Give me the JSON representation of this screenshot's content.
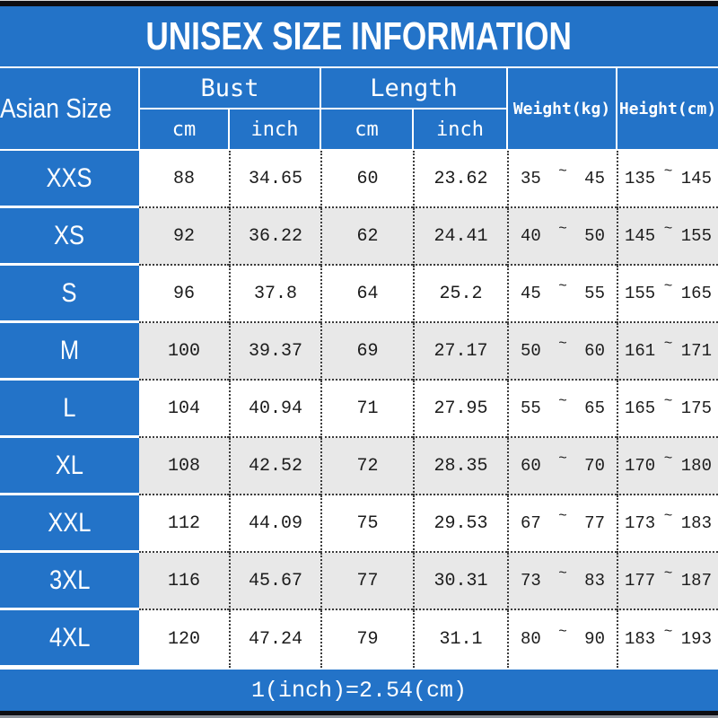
{
  "title": "UNISEX SIZE INFORMATION",
  "header": {
    "size_column": "Asian Size",
    "bust": {
      "label": "Bust",
      "sub_cm": "cm",
      "sub_inch": "inch"
    },
    "length": {
      "label": "Length",
      "sub_cm": "cm",
      "sub_inch": "inch"
    },
    "weight": "Weight(kg)",
    "height": "Height(cm)"
  },
  "range_separator": "~",
  "rows": [
    {
      "size": "XXS",
      "bust_cm": "88",
      "bust_inch": "34.65",
      "length_cm": "60",
      "length_inch": "23.62",
      "weight_min": "35",
      "weight_max": "45",
      "height_min": "135",
      "height_max": "145"
    },
    {
      "size": "XS",
      "bust_cm": "92",
      "bust_inch": "36.22",
      "length_cm": "62",
      "length_inch": "24.41",
      "weight_min": "40",
      "weight_max": "50",
      "height_min": "145",
      "height_max": "155"
    },
    {
      "size": "S",
      "bust_cm": "96",
      "bust_inch": "37.8",
      "length_cm": "64",
      "length_inch": "25.2",
      "weight_min": "45",
      "weight_max": "55",
      "height_min": "155",
      "height_max": "165"
    },
    {
      "size": "M",
      "bust_cm": "100",
      "bust_inch": "39.37",
      "length_cm": "69",
      "length_inch": "27.17",
      "weight_min": "50",
      "weight_max": "60",
      "height_min": "161",
      "height_max": "171"
    },
    {
      "size": "L",
      "bust_cm": "104",
      "bust_inch": "40.94",
      "length_cm": "71",
      "length_inch": "27.95",
      "weight_min": "55",
      "weight_max": "65",
      "height_min": "165",
      "height_max": "175"
    },
    {
      "size": "XL",
      "bust_cm": "108",
      "bust_inch": "42.52",
      "length_cm": "72",
      "length_inch": "28.35",
      "weight_min": "60",
      "weight_max": "70",
      "height_min": "170",
      "height_max": "180"
    },
    {
      "size": "XXL",
      "bust_cm": "112",
      "bust_inch": "44.09",
      "length_cm": "75",
      "length_inch": "29.53",
      "weight_min": "67",
      "weight_max": "77",
      "height_min": "173",
      "height_max": "183"
    },
    {
      "size": "3XL",
      "bust_cm": "116",
      "bust_inch": "45.67",
      "length_cm": "77",
      "length_inch": "30.31",
      "weight_min": "73",
      "weight_max": "83",
      "height_min": "177",
      "height_max": "187"
    },
    {
      "size": "4XL",
      "bust_cm": "120",
      "bust_inch": "47.24",
      "length_cm": "79",
      "length_inch": "31.1",
      "weight_min": "80",
      "weight_max": "90",
      "height_min": "183",
      "height_max": "193"
    }
  ],
  "footer_note": "1(inch)=2.54(cm)",
  "colors": {
    "blue": "#2373c8",
    "bar": "#0d0d12",
    "alt": "#e8e8e8",
    "ink": "#1c1c1c"
  },
  "chart_data": {
    "type": "table",
    "title": "UNISEX SIZE INFORMATION",
    "columns": [
      "Asian Size",
      "Bust cm",
      "Bust inch",
      "Length cm",
      "Length inch",
      "Weight(kg)",
      "Height(cm)"
    ],
    "rows": [
      [
        "XXS",
        88,
        34.65,
        60,
        23.62,
        "35~45",
        "135~145"
      ],
      [
        "XS",
        92,
        36.22,
        62,
        24.41,
        "40~50",
        "145~155"
      ],
      [
        "S",
        96,
        37.8,
        64,
        25.2,
        "45~55",
        "155~165"
      ],
      [
        "M",
        100,
        39.37,
        69,
        27.17,
        "50~60",
        "161~171"
      ],
      [
        "L",
        104,
        40.94,
        71,
        27.95,
        "55~65",
        "165~175"
      ],
      [
        "XL",
        108,
        42.52,
        72,
        28.35,
        "60~70",
        "170~180"
      ],
      [
        "XXL",
        112,
        44.09,
        75,
        29.53,
        "67~77",
        "173~183"
      ],
      [
        "3XL",
        116,
        45.67,
        77,
        30.31,
        "73~83",
        "177~187"
      ],
      [
        "4XL",
        120,
        47.24,
        79,
        31.1,
        "80~90",
        "183~193"
      ]
    ],
    "note": "1(inch)=2.54(cm)"
  }
}
